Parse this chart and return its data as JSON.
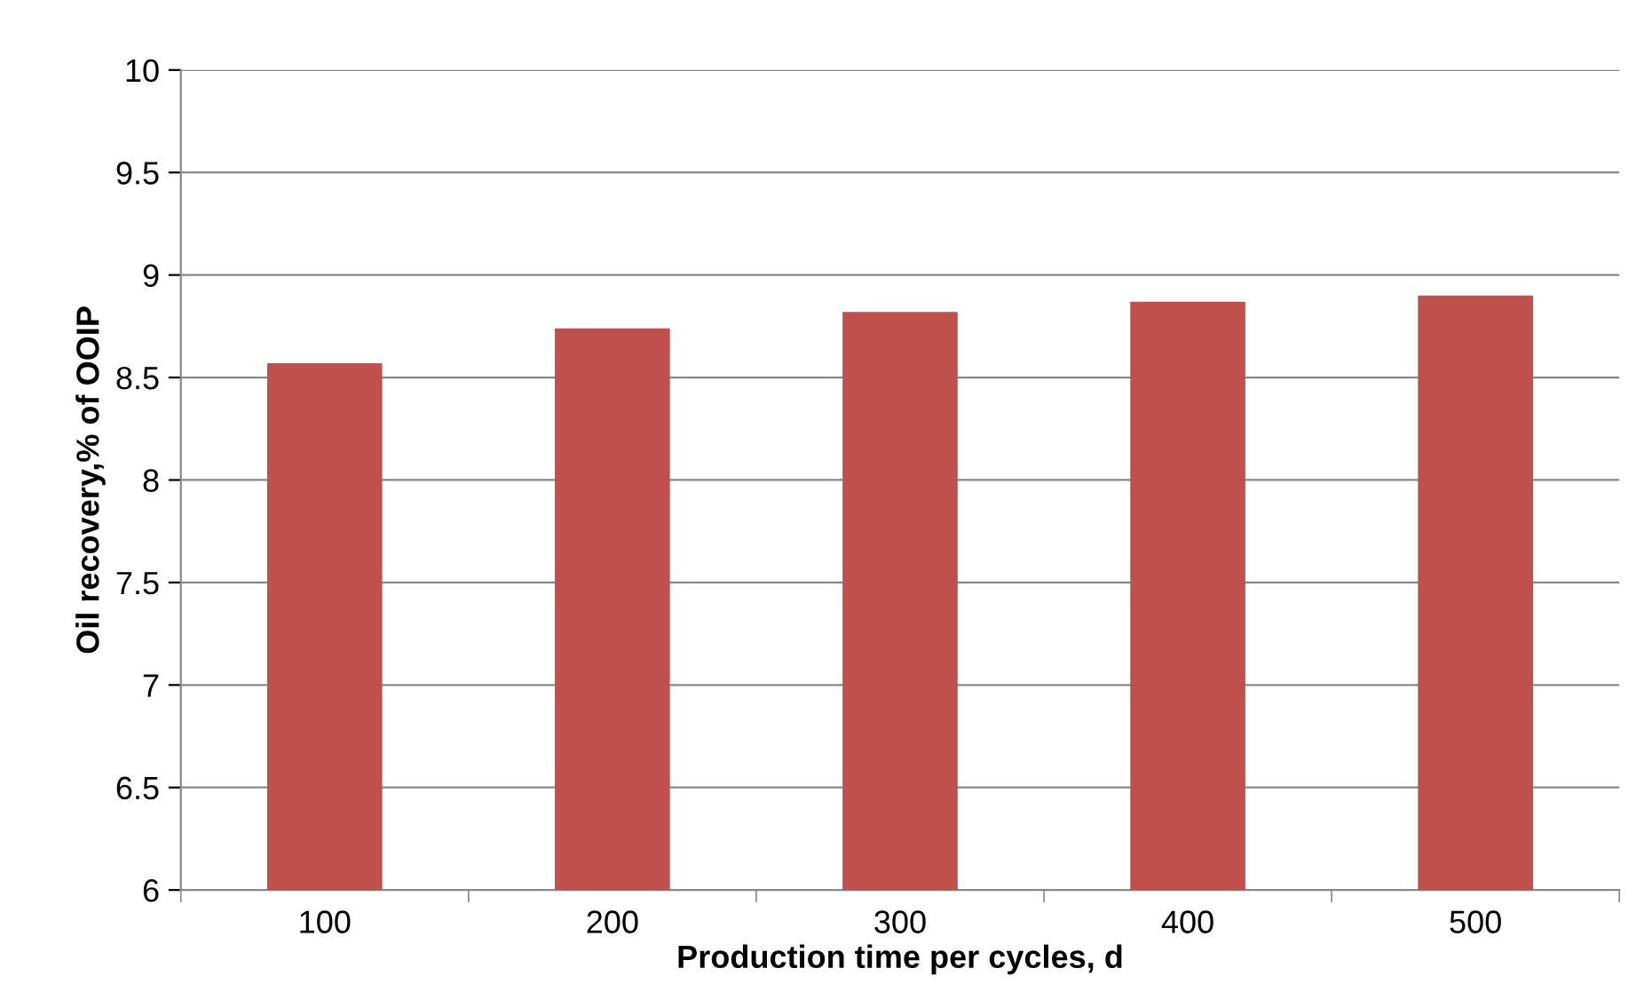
{
  "chart_data": {
    "type": "bar",
    "xlabel": "Production time per cycles, d",
    "ylabel": "Oil recovery,% of OOIP",
    "categories": [
      "100",
      "200",
      "300",
      "400",
      "500"
    ],
    "values": [
      8.57,
      8.74,
      8.82,
      8.87,
      8.9
    ],
    "color": "#c0504d",
    "ylim": [
      6,
      10
    ],
    "yticks": [
      6,
      6.5,
      7,
      7.5,
      8,
      8.5,
      9,
      9.5,
      10
    ],
    "grid": "y",
    "legend": false
  }
}
